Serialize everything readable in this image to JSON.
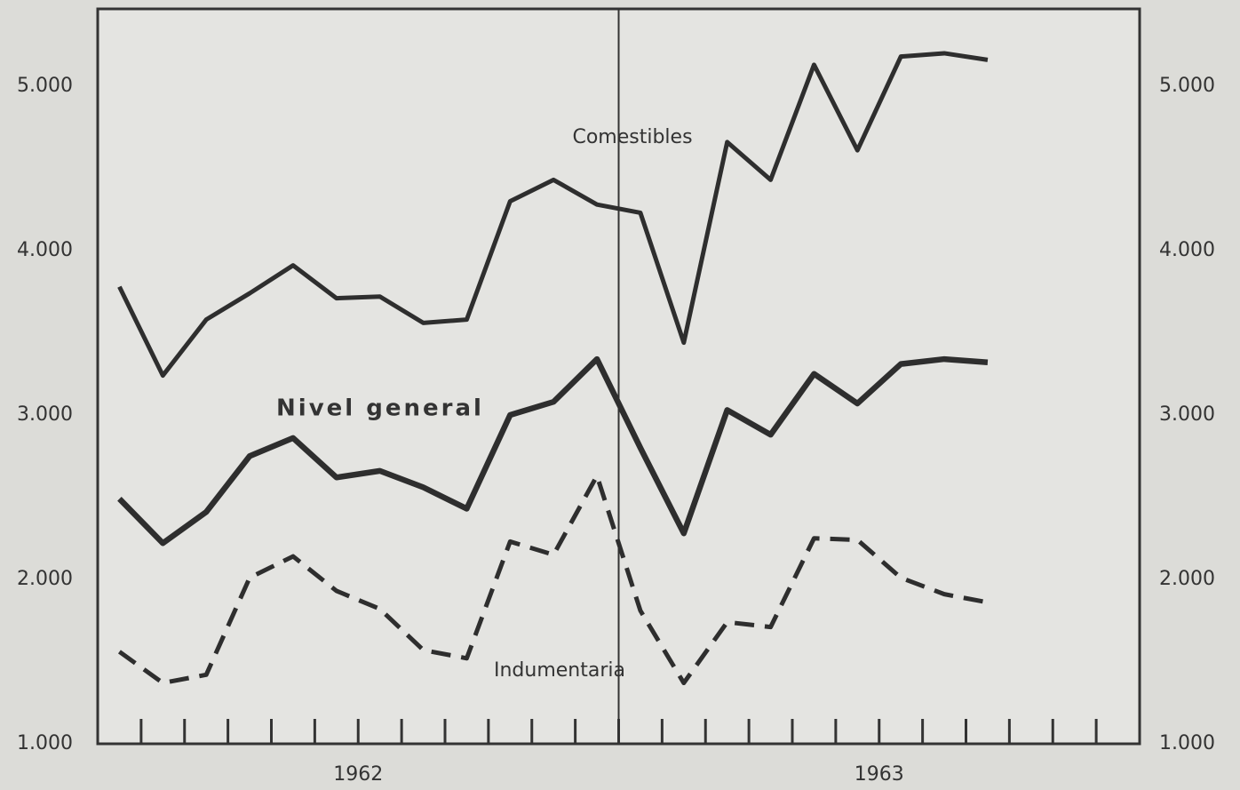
{
  "chart_data": {
    "type": "line",
    "annotations": [
      "Comestibles",
      "Nivel general",
      "Indumentaria"
    ],
    "categories": [
      null,
      null,
      null,
      null,
      null,
      null,
      null,
      null,
      null,
      null,
      null,
      null,
      null,
      null,
      null,
      null,
      null,
      null,
      null,
      null,
      null,
      null,
      null,
      null
    ],
    "groups": [
      {
        "label": "1962",
        "span": 12
      },
      {
        "label": "1963",
        "span": 12
      }
    ],
    "series": [
      {
        "name": "Comestibles",
        "color": "#2e2e2e",
        "dashed": false,
        "width": 5,
        "values": [
          3780,
          3240,
          3580,
          3740,
          3910,
          3710,
          3720,
          3560,
          3580,
          4300,
          4430,
          4280,
          4230,
          3440,
          4660,
          4430,
          5130,
          4610,
          5180,
          5200,
          5160,
          null,
          null,
          null
        ]
      },
      {
        "name": "Nivel general",
        "color": "#2e2e2e",
        "dashed": false,
        "width": 6.5,
        "values": [
          2490,
          2220,
          2410,
          2750,
          2860,
          2620,
          2660,
          2560,
          2430,
          3000,
          3080,
          3340,
          2800,
          2280,
          3030,
          2880,
          3250,
          3070,
          3310,
          3340,
          3320,
          null,
          null,
          null
        ]
      },
      {
        "name": "Indumentaria",
        "color": "#2e2e2e",
        "dashed": true,
        "width": 5,
        "values": [
          1560,
          1370,
          1420,
          2010,
          2140,
          1930,
          1820,
          1570,
          1520,
          2230,
          2150,
          2630,
          1810,
          1370,
          1740,
          1710,
          2250,
          2240,
          2010,
          1910,
          1860,
          null,
          null,
          null
        ]
      }
    ],
    "ylim": [
      1000,
      5470
    ],
    "yticks": [
      {
        "value": 1000,
        "label": "1.000"
      },
      {
        "value": 2000,
        "label": "2.000"
      },
      {
        "value": 3000,
        "label": "3.000"
      },
      {
        "value": 4000,
        "label": "4.000"
      },
      {
        "value": 5000,
        "label": "5.000"
      }
    ],
    "y2lim": [
      1000,
      5470
    ],
    "y2ticks": [
      {
        "value": 1000,
        "label": "1.000"
      },
      {
        "value": 2000,
        "label": "2.000"
      },
      {
        "value": 3000,
        "label": "3.000"
      },
      {
        "value": 4000,
        "label": "4.000"
      },
      {
        "value": 5000,
        "label": "5.000"
      }
    ],
    "grid": false
  }
}
